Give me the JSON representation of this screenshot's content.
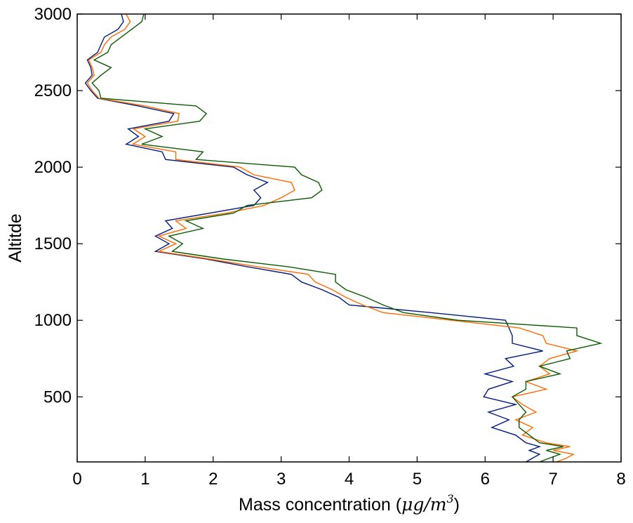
{
  "chart_data": {
    "type": "line",
    "title": "",
    "xlabel": "Mass concentration",
    "xlabel_unit_open": "(",
    "xlabel_unit_math": "μg/m",
    "xlabel_unit_sup": "3",
    "xlabel_unit_close": ")",
    "ylabel": "Altitde",
    "xlim": [
      0,
      8
    ],
    "ylim": [
      75,
      3000
    ],
    "xticks": [
      0,
      1,
      2,
      3,
      4,
      5,
      6,
      7,
      8
    ],
    "xtick_labels": [
      "0",
      "1",
      "2",
      "3",
      "4",
      "5",
      "6",
      "7",
      "8"
    ],
    "yticks": [
      500,
      1000,
      1500,
      2000,
      2500,
      3000
    ],
    "ytick_labels": [
      "500",
      "1000",
      "1500",
      "2000",
      "2500",
      "3000"
    ],
    "grid": false,
    "y": [
      75,
      100,
      125,
      150,
      175,
      200,
      250,
      300,
      350,
      400,
      450,
      500,
      550,
      600,
      650,
      700,
      750,
      800,
      850,
      900,
      950,
      1000,
      1050,
      1100,
      1150,
      1200,
      1250,
      1300,
      1350,
      1400,
      1450,
      1500,
      1550,
      1600,
      1650,
      1700,
      1750,
      1800,
      1850,
      1900,
      1950,
      2000,
      2050,
      2100,
      2150,
      2200,
      2250,
      2300,
      2350,
      2400,
      2450,
      2500,
      2550,
      2600,
      2650,
      2700,
      2750,
      2800,
      2850,
      2900,
      2950,
      3000
    ],
    "series": [
      {
        "color": "#001a80",
        "values": [
          6.6,
          6.7,
          6.8,
          6.65,
          6.8,
          6.6,
          6.45,
          6.1,
          6.35,
          6.05,
          6.45,
          5.98,
          6.05,
          6.4,
          6.0,
          6.42,
          6.3,
          6.85,
          6.4,
          6.4,
          6.35,
          6.3,
          5.2,
          4.0,
          3.85,
          3.6,
          3.3,
          3.15,
          2.5,
          1.9,
          1.15,
          1.35,
          1.15,
          1.4,
          1.3,
          1.95,
          2.6,
          2.7,
          2.6,
          2.8,
          2.5,
          2.3,
          1.3,
          1.25,
          0.72,
          0.9,
          0.75,
          1.35,
          1.42,
          0.9,
          0.3,
          0.2,
          0.12,
          0.22,
          0.2,
          0.15,
          0.3,
          0.35,
          0.4,
          0.6,
          0.68,
          0.65
        ]
      },
      {
        "color": "#ff6a00",
        "values": [
          7.05,
          7.2,
          7.3,
          7.0,
          7.25,
          6.9,
          6.55,
          6.7,
          6.45,
          6.75,
          6.55,
          6.4,
          6.9,
          6.6,
          6.95,
          6.8,
          6.95,
          7.35,
          6.9,
          6.85,
          6.5,
          5.5,
          4.5,
          4.2,
          3.95,
          3.75,
          3.5,
          3.4,
          2.65,
          1.95,
          1.2,
          1.45,
          1.2,
          1.6,
          1.45,
          2.2,
          2.75,
          3.0,
          3.2,
          3.15,
          2.6,
          2.4,
          1.45,
          1.45,
          0.82,
          1.0,
          0.83,
          1.48,
          1.5,
          1.0,
          0.32,
          0.22,
          0.15,
          0.25,
          0.22,
          0.17,
          0.35,
          0.4,
          0.5,
          0.7,
          0.78,
          0.72
        ]
      },
      {
        "color": "#0a5a00",
        "values": [
          6.8,
          6.95,
          7.1,
          6.9,
          7.15,
          6.8,
          6.65,
          6.5,
          6.5,
          6.6,
          6.5,
          6.4,
          6.6,
          6.6,
          7.1,
          6.8,
          7.25,
          7.2,
          7.7,
          7.35,
          7.35,
          5.6,
          4.8,
          4.5,
          4.25,
          3.95,
          3.8,
          3.8,
          3.1,
          2.15,
          1.4,
          1.55,
          1.35,
          1.85,
          1.6,
          2.3,
          2.5,
          3.45,
          3.6,
          3.55,
          3.3,
          3.2,
          1.75,
          1.85,
          0.95,
          1.25,
          1.0,
          1.8,
          1.9,
          1.75,
          0.35,
          0.32,
          0.22,
          0.35,
          0.5,
          0.25,
          0.45,
          0.5,
          0.65,
          0.8,
          0.95,
          0.98
        ]
      }
    ]
  }
}
